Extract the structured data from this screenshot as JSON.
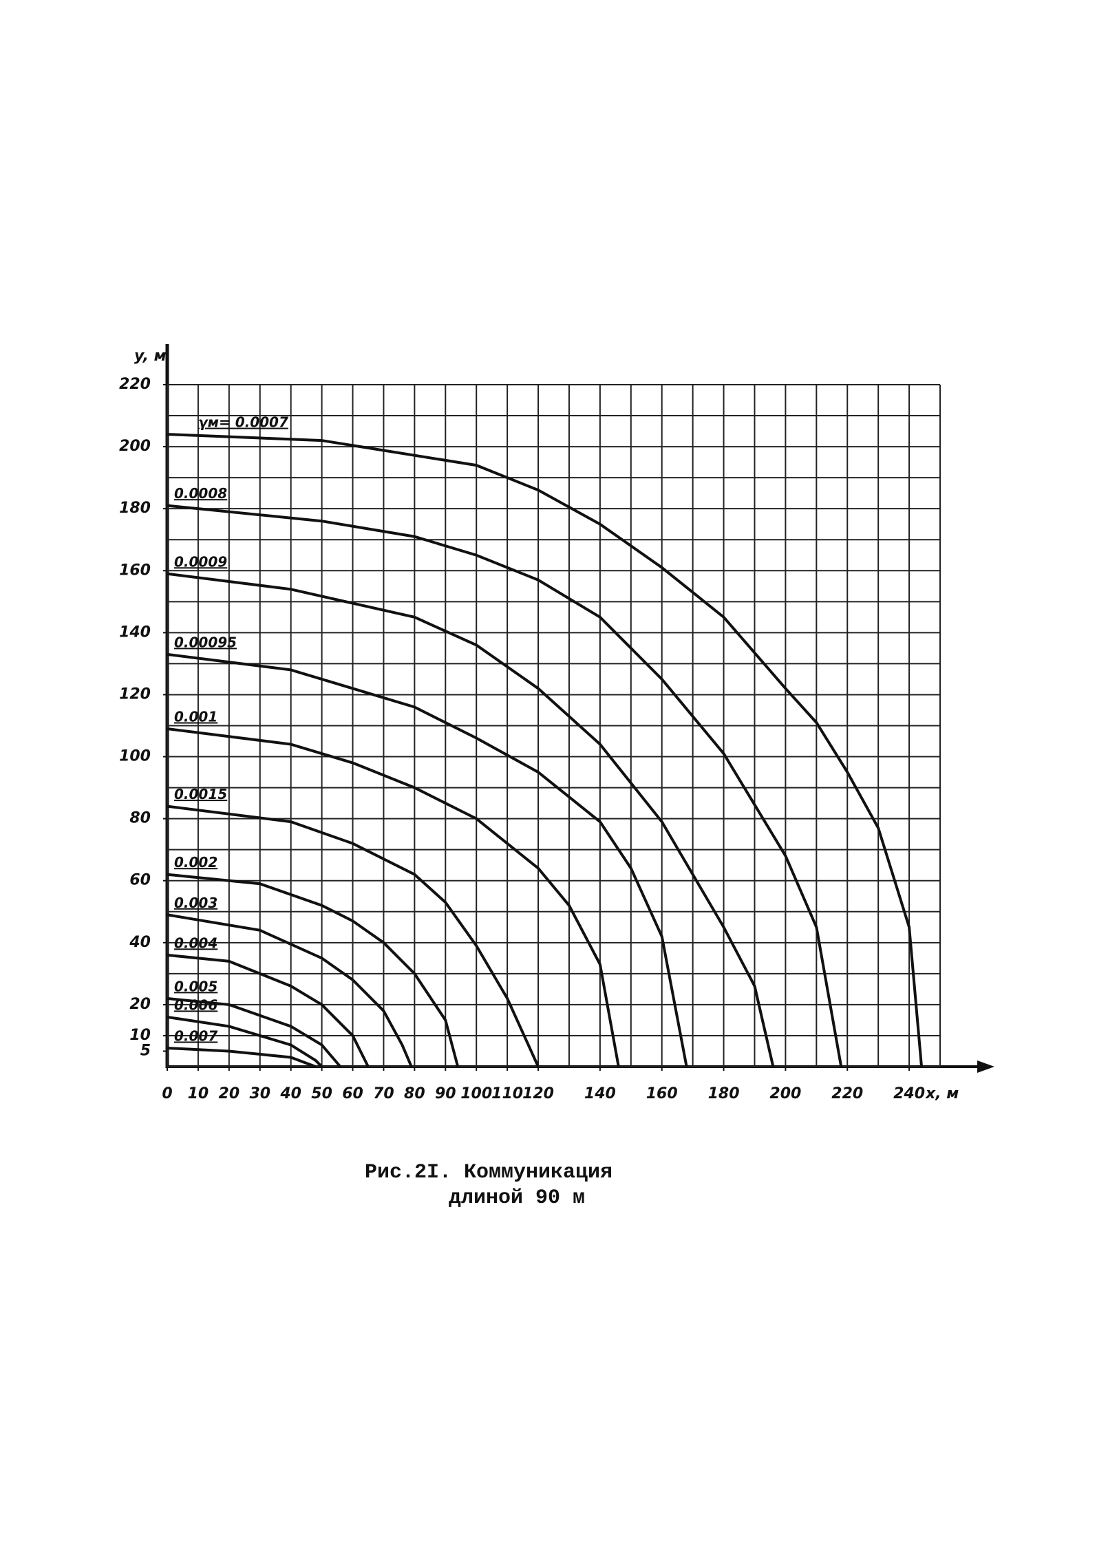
{
  "chart_data": {
    "type": "line",
    "title": [
      "Рис.2I. Коммуникация",
      "длиной 90 м"
    ],
    "x_label": "x, м",
    "y_label": "y, м",
    "xlim": [
      0,
      250
    ],
    "ylim": [
      0,
      220
    ],
    "xticks": [
      0,
      10,
      20,
      30,
      40,
      50,
      60,
      70,
      80,
      90,
      100,
      110,
      120,
      140,
      160,
      180,
      200,
      220,
      240
    ],
    "yticks": [
      5,
      10,
      20,
      40,
      60,
      80,
      100,
      120,
      140,
      160,
      180,
      200,
      220
    ],
    "xgrid": [
      0,
      10,
      20,
      30,
      40,
      50,
      60,
      70,
      80,
      90,
      100,
      110,
      120,
      130,
      140,
      150,
      160,
      170,
      180,
      190,
      200,
      210,
      220,
      230,
      240,
      250
    ],
    "ygrid": [
      0,
      10,
      20,
      30,
      40,
      50,
      60,
      70,
      80,
      90,
      100,
      110,
      120,
      130,
      140,
      150,
      160,
      170,
      180,
      190,
      200,
      210,
      220
    ],
    "grid": true,
    "color": "#111111",
    "series": [
      {
        "name": "γм= 0.0007",
        "x": [
          0,
          50,
          100,
          120,
          140,
          160,
          180,
          200,
          210,
          220,
          230,
          240,
          244
        ],
        "values": [
          204,
          202,
          194,
          186,
          175,
          161,
          145,
          122,
          111,
          95,
          77,
          45,
          0
        ]
      },
      {
        "name": "0.0008",
        "x": [
          0,
          50,
          80,
          100,
          120,
          140,
          160,
          180,
          200,
          210,
          218
        ],
        "values": [
          181,
          176,
          171,
          165,
          157,
          145,
          125,
          101,
          68,
          45,
          0
        ]
      },
      {
        "name": "0.0009",
        "x": [
          0,
          40,
          80,
          100,
          120,
          140,
          160,
          180,
          190,
          196
        ],
        "values": [
          159,
          154,
          145,
          136,
          122,
          104,
          79,
          45,
          26,
          0
        ]
      },
      {
        "name": "0.00095",
        "x": [
          0,
          40,
          60,
          80,
          100,
          120,
          140,
          150,
          160,
          168
        ],
        "values": [
          133,
          128,
          122,
          116,
          106,
          95,
          79,
          64,
          42,
          0
        ]
      },
      {
        "name": "0.001",
        "x": [
          0,
          40,
          60,
          80,
          100,
          120,
          130,
          140,
          146
        ],
        "values": [
          109,
          104,
          98,
          90,
          80,
          64,
          52,
          33,
          0
        ]
      },
      {
        "name": "0.0015",
        "x": [
          0,
          40,
          60,
          80,
          90,
          100,
          110,
          120
        ],
        "values": [
          84,
          79,
          72,
          62,
          53,
          39,
          22,
          0
        ]
      },
      {
        "name": "0.002",
        "x": [
          0,
          30,
          50,
          60,
          70,
          80,
          90,
          94
        ],
        "values": [
          62,
          59,
          52,
          47,
          40,
          30,
          15,
          0
        ]
      },
      {
        "name": "0.003",
        "x": [
          0,
          30,
          50,
          60,
          70,
          76,
          79
        ],
        "values": [
          49,
          44,
          35,
          28,
          18,
          7,
          0
        ]
      },
      {
        "name": "0.004",
        "x": [
          0,
          20,
          40,
          50,
          60,
          65
        ],
        "values": [
          36,
          34,
          26,
          20,
          10,
          0
        ]
      },
      {
        "name": "0.005",
        "x": [
          0,
          20,
          40,
          50,
          56
        ],
        "values": [
          22,
          20,
          13,
          7,
          0
        ]
      },
      {
        "name": "0.006",
        "x": [
          0,
          20,
          40,
          48,
          50
        ],
        "values": [
          16,
          13,
          7,
          2,
          0
        ]
      },
      {
        "name": "0.007",
        "x": [
          0,
          20,
          40,
          48
        ],
        "values": [
          6,
          5,
          3,
          0
        ]
      }
    ]
  }
}
